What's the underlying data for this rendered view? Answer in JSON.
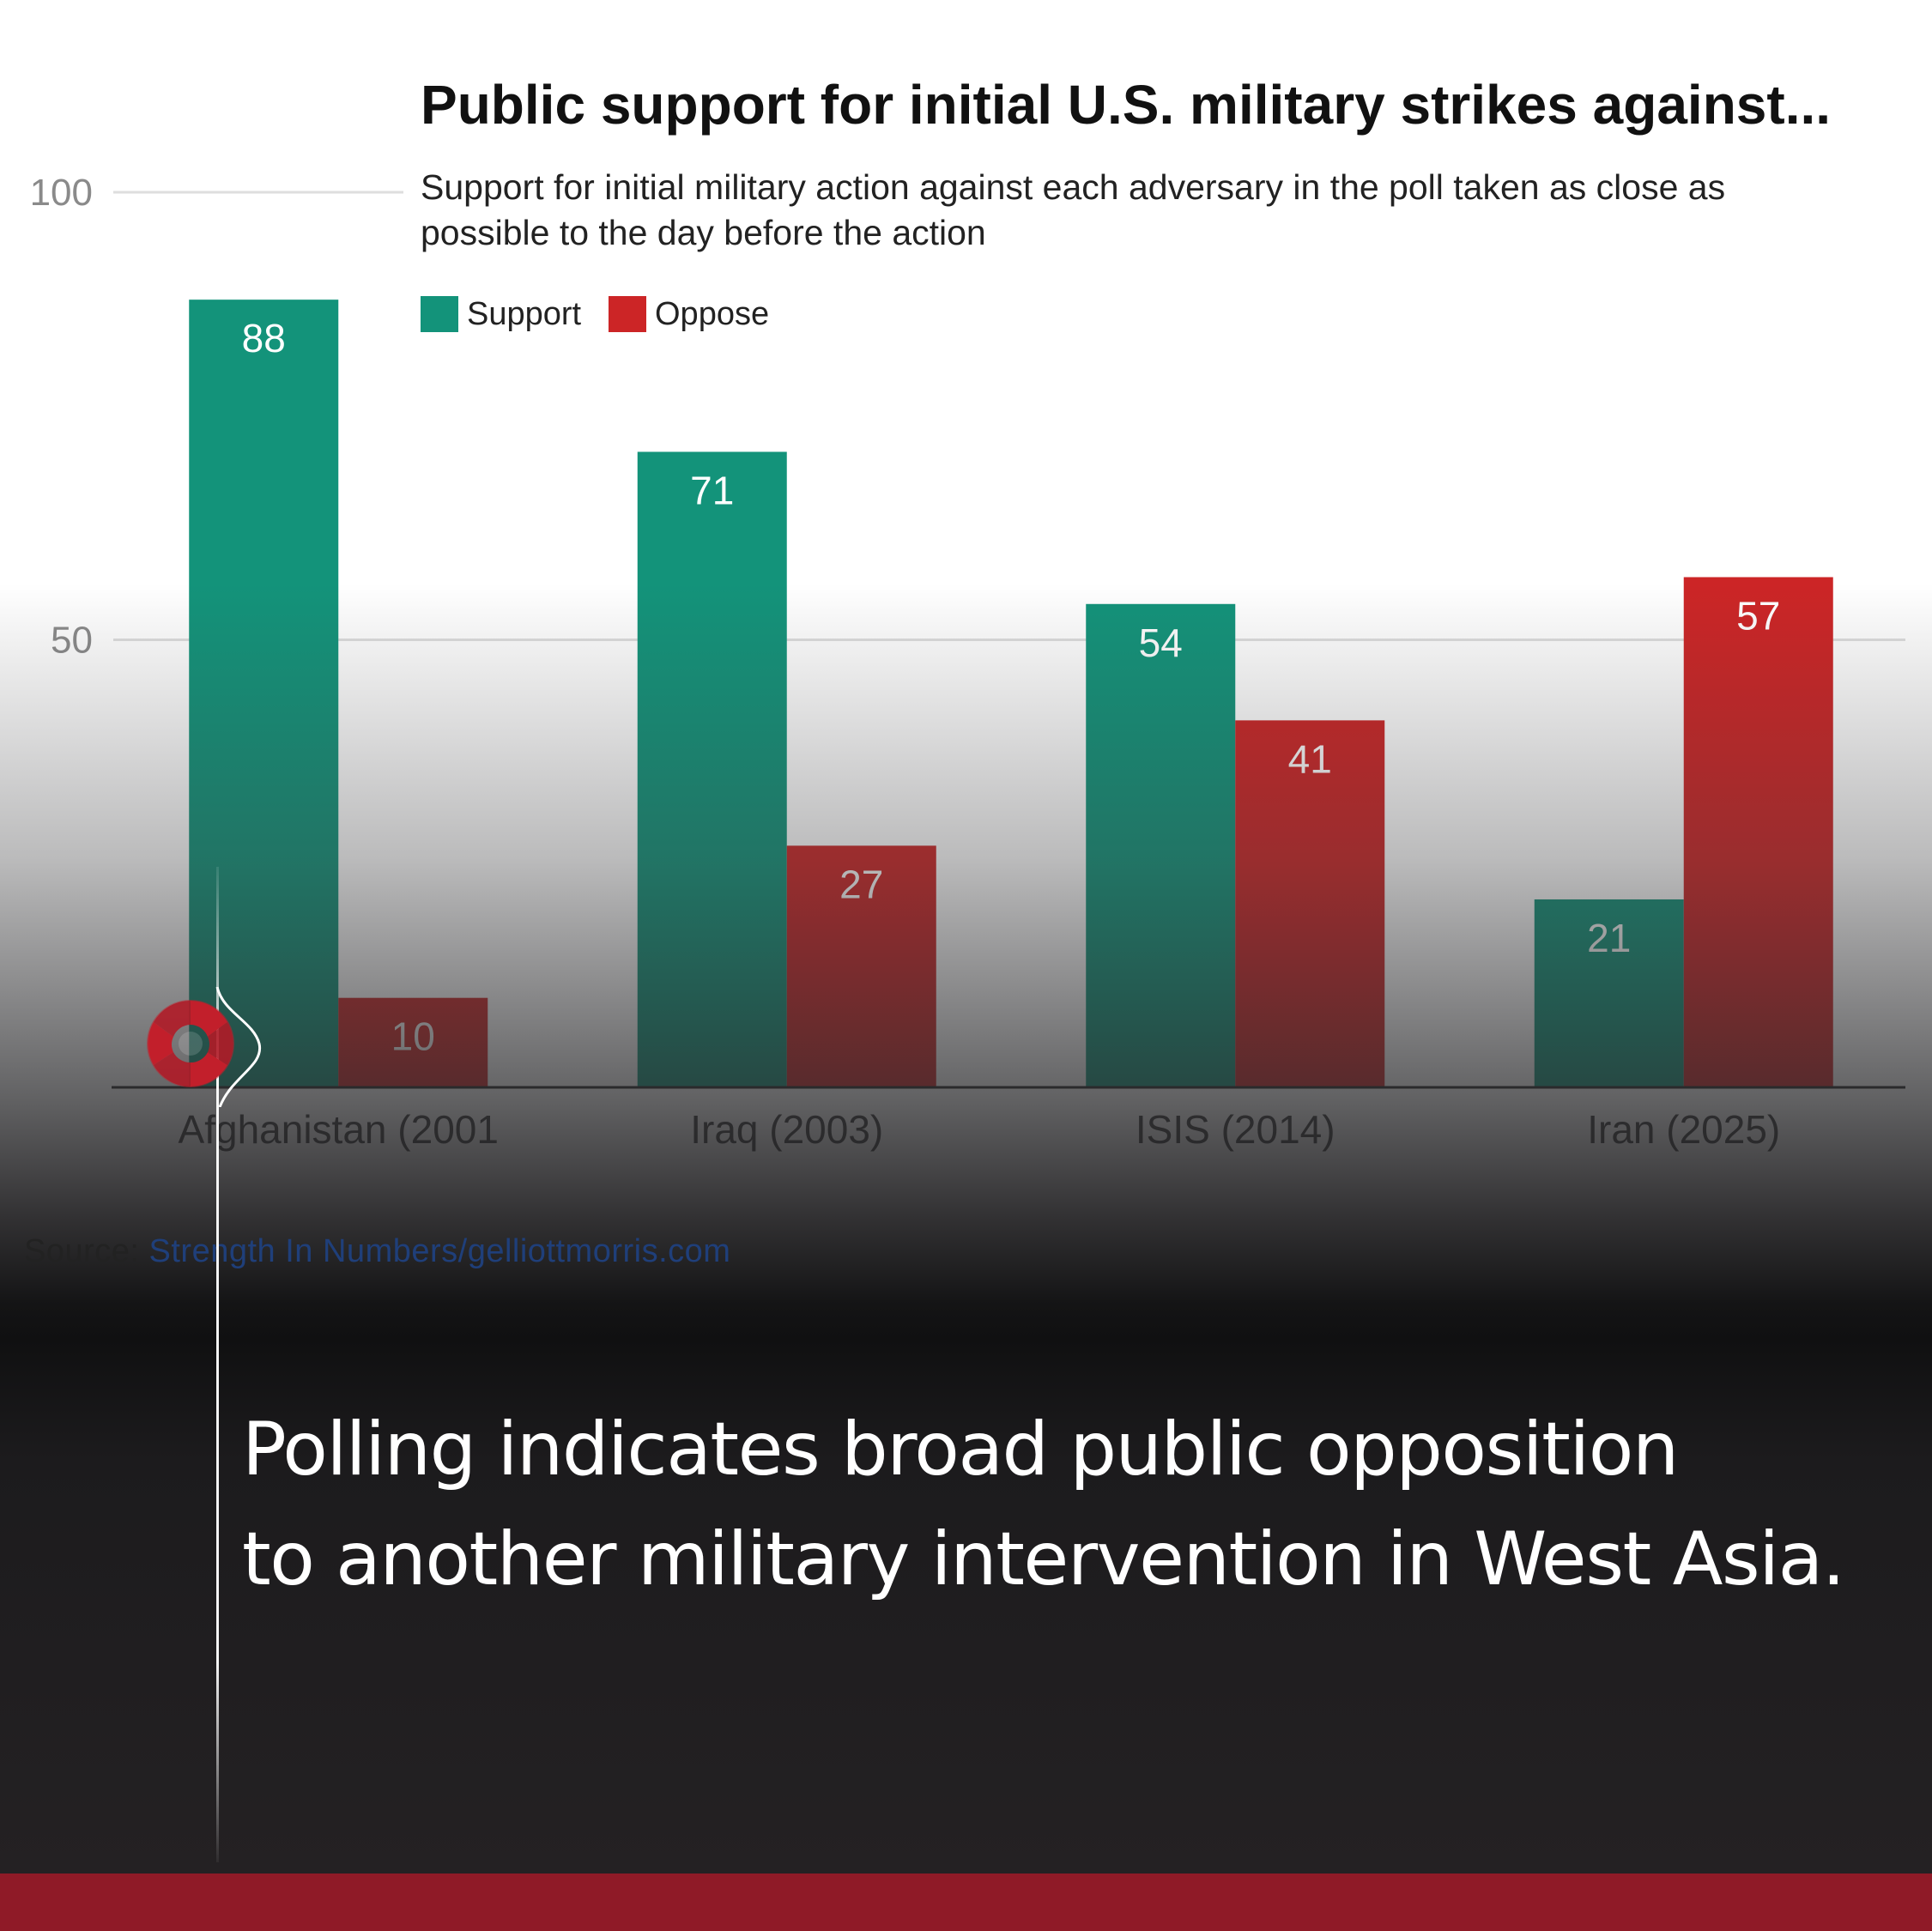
{
  "chart_data": {
    "type": "bar",
    "title": "Public support for initial U.S. military strikes against...",
    "subtitle_lines": [
      "Support for initial military action against each adversary in the poll taken as close as",
      "possible to the day before the action"
    ],
    "categories": [
      "Afghanistan (2001",
      "Iraq (2003)",
      "ISIS (2014)",
      "Iran (2025)"
    ],
    "series": [
      {
        "name": "Support",
        "color": "#13937a",
        "values": [
          88,
          71,
          54,
          21
        ]
      },
      {
        "name": "Oppose",
        "color": "#cc2526",
        "values": [
          10,
          27,
          41,
          57
        ]
      }
    ],
    "ylim": [
      0,
      100
    ],
    "yticks": [
      50,
      100
    ],
    "ytick_labels": [
      "50",
      "100"
    ],
    "grid": true,
    "legend_position": "top-left"
  },
  "source": {
    "prefix": "Source: ",
    "link_text": "Strength In Numbers/gelliottmorris.com"
  },
  "headline": {
    "line1": "Polling indicates broad public opposition",
    "line2": "to another military intervention in West Asia."
  },
  "brand": {
    "accent_color": "#8f1a27",
    "logo_icon": "spiral-swirl-icon"
  }
}
